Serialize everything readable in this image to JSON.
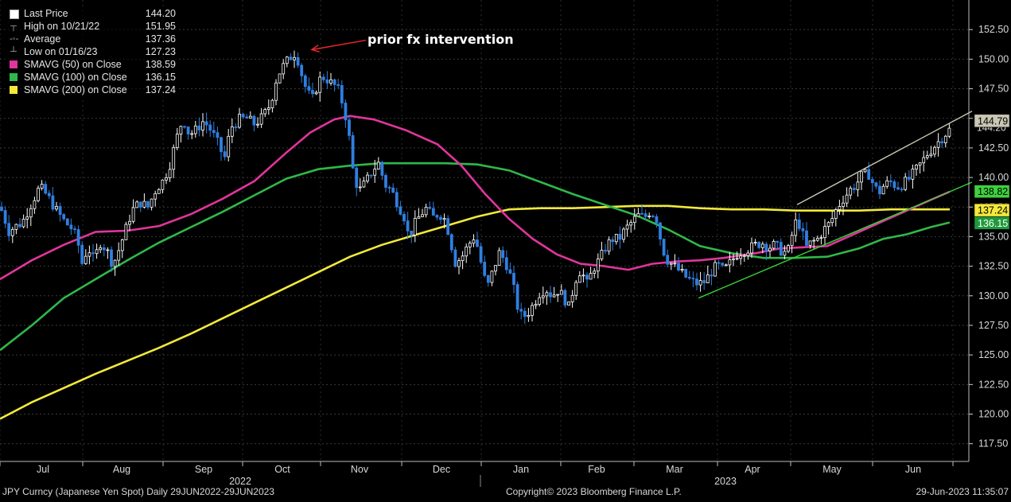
{
  "chart_data": {
    "type": "candlestick",
    "ylim": [
      116,
      155
    ],
    "y_ticks": [
      "117.50",
      "120.00",
      "122.50",
      "125.00",
      "127.50",
      "130.00",
      "132.50",
      "135.00",
      "137.50",
      "140.00",
      "142.50",
      "145.00",
      "147.50",
      "150.00",
      "152.50"
    ],
    "x_ticks": [
      "Jul",
      "Aug",
      "Sep",
      "Oct",
      "Nov",
      "Dec",
      "Jan",
      "Feb",
      "Mar",
      "Apr",
      "May",
      "Jun"
    ],
    "year_labels": [
      "2022",
      "2023"
    ],
    "annotation": "prior fx intervention",
    "legend": {
      "last_price": {
        "label": "Last Price",
        "value": "144.20",
        "color": "#ffffff"
      },
      "high": {
        "label": "High on 10/21/22",
        "value": "151.95"
      },
      "average": {
        "label": "Average",
        "value": "137.36"
      },
      "low": {
        "label": "Low on 01/16/23",
        "value": "127.23"
      },
      "sma50": {
        "label": "SMAVG (50)  on Close",
        "value": "138.59",
        "color": "#e0359c"
      },
      "sma100": {
        "label": "SMAVG (100)  on Close",
        "value": "136.15",
        "color": "#2fb84a"
      },
      "sma200": {
        "label": "SMAVG (200)  on Close",
        "value": "137.24",
        "color": "#f2e93a"
      }
    },
    "axis_badges": [
      {
        "value": "144.79",
        "color": "#c8c8b4",
        "text_color": "#000000"
      },
      {
        "value": "138.82",
        "color": "#3ed13e",
        "text_color": "#000000"
      },
      {
        "value": "137.24",
        "color": "#f4e83a",
        "text_color": "#000000"
      },
      {
        "value": "136.15",
        "color": "#1e9a3c",
        "text_color": "#ffffff"
      }
    ],
    "price_path": [
      [
        0,
        137.5
      ],
      [
        5,
        136.8
      ],
      [
        10,
        135.4
      ],
      [
        18,
        135.8
      ],
      [
        28,
        136.2
      ],
      [
        38,
        137.6
      ],
      [
        50,
        139.2
      ],
      [
        60,
        138.4
      ],
      [
        72,
        137.1
      ],
      [
        82,
        136.2
      ],
      [
        90,
        135.7
      ],
      [
        97,
        134.8
      ],
      [
        104,
        132.5
      ],
      [
        110,
        134.2
      ],
      [
        118,
        133.0
      ],
      [
        126,
        134.5
      ],
      [
        134,
        133.9
      ],
      [
        142,
        132.6
      ],
      [
        150,
        134.0
      ],
      [
        158,
        135.6
      ],
      [
        166,
        137.2
      ],
      [
        176,
        137.9
      ],
      [
        186,
        137.5
      ],
      [
        196,
        139.0
      ],
      [
        206,
        139.8
      ],
      [
        214,
        141.2
      ],
      [
        222,
        143.3
      ],
      [
        230,
        145.0
      ],
      [
        238,
        143.6
      ],
      [
        246,
        144.0
      ],
      [
        256,
        144.8
      ],
      [
        266,
        143.9
      ],
      [
        276,
        142.6
      ],
      [
        282,
        141.5
      ],
      [
        290,
        144.2
      ],
      [
        300,
        144.9
      ],
      [
        310,
        145.0
      ],
      [
        320,
        144.5
      ],
      [
        330,
        145.1
      ],
      [
        340,
        146.2
      ],
      [
        348,
        148.5
      ],
      [
        356,
        149.4
      ],
      [
        364,
        150.1
      ],
      [
        372,
        150.6
      ],
      [
        378,
        149.0
      ],
      [
        386,
        147.2
      ],
      [
        394,
        146.6
      ],
      [
        400,
        148.2
      ],
      [
        408,
        148.5
      ],
      [
        416,
        148.0
      ],
      [
        424,
        147.6
      ],
      [
        432,
        146.0
      ],
      [
        438,
        144.0
      ],
      [
        442,
        141.3
      ],
      [
        446,
        139.8
      ],
      [
        452,
        138.9
      ],
      [
        460,
        139.6
      ],
      [
        468,
        140.6
      ],
      [
        476,
        141.2
      ],
      [
        484,
        139.4
      ],
      [
        492,
        138.9
      ],
      [
        500,
        137.8
      ],
      [
        508,
        136.7
      ],
      [
        514,
        134.9
      ],
      [
        520,
        135.9
      ],
      [
        528,
        136.8
      ],
      [
        536,
        137.4
      ],
      [
        544,
        136.6
      ],
      [
        552,
        137.0
      ],
      [
        560,
        136.4
      ],
      [
        566,
        134.8
      ],
      [
        572,
        132.8
      ],
      [
        580,
        133.2
      ],
      [
        588,
        134.2
      ],
      [
        596,
        135.0
      ],
      [
        602,
        133.8
      ],
      [
        608,
        131.6
      ],
      [
        614,
        130.9
      ],
      [
        620,
        132.2
      ],
      [
        628,
        133.7
      ],
      [
        636,
        132.8
      ],
      [
        644,
        131.2
      ],
      [
        650,
        129.2
      ],
      [
        656,
        128.2
      ],
      [
        662,
        128.4
      ],
      [
        670,
        129.2
      ],
      [
        678,
        130.2
      ],
      [
        686,
        130.6
      ],
      [
        694,
        130.0
      ],
      [
        702,
        130.5
      ],
      [
        710,
        129.7
      ],
      [
        716,
        128.9
      ],
      [
        722,
        131.2
      ],
      [
        730,
        132.2
      ],
      [
        738,
        131.0
      ],
      [
        746,
        132.3
      ],
      [
        754,
        133.1
      ],
      [
        762,
        134.2
      ],
      [
        770,
        134.8
      ],
      [
        778,
        134.8
      ],
      [
        786,
        135.6
      ],
      [
        794,
        136.2
      ],
      [
        802,
        136.8
      ],
      [
        810,
        136.6
      ],
      [
        818,
        137.2
      ],
      [
        826,
        136.4
      ],
      [
        832,
        134.2
      ],
      [
        838,
        133.1
      ],
      [
        846,
        132.6
      ],
      [
        854,
        132.1
      ],
      [
        862,
        131.6
      ],
      [
        870,
        131.2
      ],
      [
        878,
        131.0
      ],
      [
        886,
        131.2
      ],
      [
        894,
        132.0
      ],
      [
        902,
        132.6
      ],
      [
        910,
        132.1
      ],
      [
        918,
        132.8
      ],
      [
        926,
        133.5
      ],
      [
        934,
        133.8
      ],
      [
        942,
        134.0
      ],
      [
        950,
        134.3
      ],
      [
        958,
        134.5
      ],
      [
        966,
        134.1
      ],
      [
        974,
        134.3
      ],
      [
        982,
        133.8
      ],
      [
        990,
        133.6
      ],
      [
        996,
        135.2
      ],
      [
        1002,
        136.6
      ],
      [
        1008,
        135.4
      ],
      [
        1014,
        134.1
      ],
      [
        1020,
        134.5
      ],
      [
        1028,
        134.8
      ],
      [
        1036,
        135.6
      ],
      [
        1044,
        136.2
      ],
      [
        1052,
        137.4
      ],
      [
        1060,
        138.2
      ],
      [
        1068,
        138.9
      ],
      [
        1076,
        139.4
      ],
      [
        1084,
        140.2
      ],
      [
        1092,
        140.3
      ],
      [
        1100,
        139.1
      ],
      [
        1106,
        138.8
      ],
      [
        1112,
        139.4
      ],
      [
        1120,
        139.6
      ],
      [
        1128,
        139.2
      ],
      [
        1136,
        139.5
      ],
      [
        1142,
        139.8
      ],
      [
        1150,
        140.5
      ],
      [
        1158,
        141.2
      ],
      [
        1166,
        142.0
      ],
      [
        1174,
        142.6
      ],
      [
        1182,
        143.2
      ],
      [
        1190,
        143.8
      ],
      [
        1196,
        144.2
      ]
    ],
    "sma50_path": [
      [
        0,
        131.4
      ],
      [
        40,
        133.0
      ],
      [
        80,
        134.3
      ],
      [
        120,
        135.4
      ],
      [
        160,
        135.5
      ],
      [
        200,
        135.9
      ],
      [
        240,
        136.9
      ],
      [
        280,
        138.2
      ],
      [
        320,
        139.7
      ],
      [
        360,
        142.1
      ],
      [
        390,
        143.8
      ],
      [
        420,
        144.9
      ],
      [
        440,
        145.2
      ],
      [
        470,
        144.9
      ],
      [
        510,
        144.0
      ],
      [
        550,
        142.8
      ],
      [
        580,
        141.0
      ],
      [
        610,
        138.6
      ],
      [
        640,
        136.5
      ],
      [
        670,
        134.8
      ],
      [
        700,
        133.5
      ],
      [
        730,
        132.7
      ],
      [
        760,
        132.5
      ],
      [
        790,
        132.2
      ],
      [
        820,
        132.7
      ],
      [
        850,
        132.9
      ],
      [
        880,
        133.0
      ],
      [
        910,
        133.2
      ],
      [
        950,
        133.6
      ],
      [
        980,
        134.0
      ],
      [
        1010,
        134.1
      ],
      [
        1040,
        134.2
      ],
      [
        1070,
        135.1
      ],
      [
        1100,
        136.0
      ],
      [
        1140,
        137.2
      ],
      [
        1170,
        138.1
      ],
      [
        1194,
        138.8
      ]
    ],
    "sma100_path": [
      [
        0,
        125.4
      ],
      [
        40,
        127.5
      ],
      [
        80,
        129.8
      ],
      [
        120,
        131.4
      ],
      [
        160,
        133.0
      ],
      [
        200,
        134.5
      ],
      [
        240,
        135.8
      ],
      [
        280,
        137.1
      ],
      [
        320,
        138.5
      ],
      [
        360,
        139.9
      ],
      [
        400,
        140.7
      ],
      [
        440,
        141.0
      ],
      [
        480,
        141.2
      ],
      [
        520,
        141.2
      ],
      [
        560,
        141.2
      ],
      [
        600,
        141.1
      ],
      [
        640,
        140.6
      ],
      [
        680,
        139.6
      ],
      [
        720,
        138.6
      ],
      [
        760,
        137.7
      ],
      [
        800,
        136.8
      ],
      [
        840,
        135.6
      ],
      [
        880,
        134.2
      ],
      [
        920,
        133.6
      ],
      [
        960,
        133.2
      ],
      [
        1000,
        133.2
      ],
      [
        1040,
        133.3
      ],
      [
        1080,
        134.0
      ],
      [
        1110,
        134.8
      ],
      [
        1140,
        135.2
      ],
      [
        1170,
        135.8
      ],
      [
        1194,
        136.2
      ]
    ],
    "sma200_path": [
      [
        0,
        119.6
      ],
      [
        40,
        121.0
      ],
      [
        80,
        122.2
      ],
      [
        120,
        123.4
      ],
      [
        160,
        124.5
      ],
      [
        200,
        125.6
      ],
      [
        240,
        126.8
      ],
      [
        280,
        128.1
      ],
      [
        320,
        129.4
      ],
      [
        360,
        130.7
      ],
      [
        400,
        132.0
      ],
      [
        440,
        133.3
      ],
      [
        480,
        134.3
      ],
      [
        520,
        135.1
      ],
      [
        560,
        135.9
      ],
      [
        600,
        136.7
      ],
      [
        640,
        137.3
      ],
      [
        680,
        137.4
      ],
      [
        720,
        137.4
      ],
      [
        760,
        137.5
      ],
      [
        800,
        137.6
      ],
      [
        840,
        137.6
      ],
      [
        880,
        137.4
      ],
      [
        920,
        137.3
      ],
      [
        960,
        137.3
      ],
      [
        1000,
        137.2
      ],
      [
        1040,
        137.2
      ],
      [
        1080,
        137.2
      ],
      [
        1120,
        137.3
      ],
      [
        1160,
        137.3
      ],
      [
        1194,
        137.3
      ]
    ],
    "trendlines": [
      {
        "color": "#c8c8b4",
        "points": [
          [
            1002,
            137.7
          ],
          [
            1222,
            145.6
          ]
        ]
      },
      {
        "color": "#36d336",
        "points": [
          [
            878,
            129.8
          ],
          [
            1222,
            139.6
          ]
        ]
      }
    ],
    "arrow": {
      "color": "#e8282e",
      "from": [
        460,
        151.6
      ],
      "to": [
        392,
        150.8
      ]
    }
  },
  "footer": {
    "left": "JPY Curncy (Japanese Yen Spot)  Daily 29JUN2022-29JUN2023",
    "center": "Copyright© 2023 Bloomberg Finance L.P.",
    "right": "29-Jun-2023 11:35:07"
  }
}
